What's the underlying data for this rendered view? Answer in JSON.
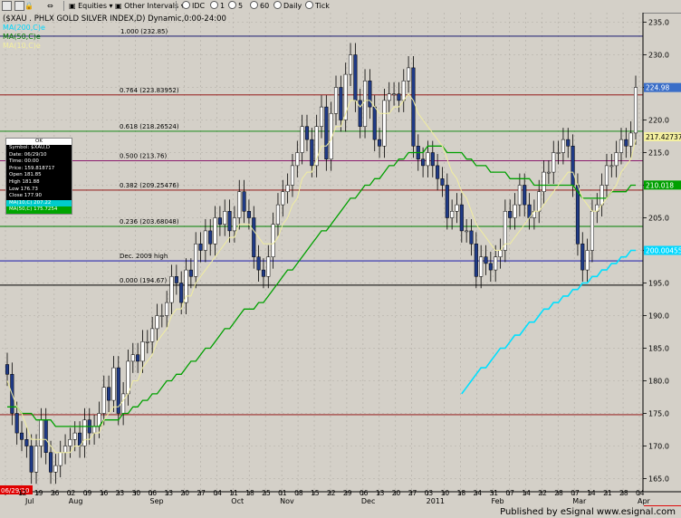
{
  "toolbar": {
    "items": [
      "Equities",
      "Other Intervals",
      "IDC",
      "1",
      "5",
      "60",
      "Daily",
      "Tick"
    ]
  },
  "footer": {
    "published": "Published by eSignal  www.esignal.com"
  },
  "databox": {
    "header": "OK",
    "rows": [
      "Symbol: $XAU,D",
      "Date: 06/29/10",
      "Time: 00:00",
      "Price: 159.818717",
      "Open 181.85",
      "High 181.88",
      "Low 176.73",
      "Close 177.90"
    ],
    "ma_rows": [
      "MA(10,C) 207.22",
      "MA(50,C) 175.7254"
    ]
  },
  "colors": {
    "background": "#d4d0c8",
    "candle_up": "#ffffff",
    "candle_down": "#1f3a86",
    "wick": "#000000",
    "ma10": "#f0eda0",
    "ma50": "#00a000",
    "ma200": "#00e0ff",
    "fib_line": "#8b0000",
    "fib_green": "#008000",
    "dec2009": "#0000aa",
    "top_line": "#000088"
  },
  "chart_data": {
    "type": "candlestick",
    "title": "($XAU . PHLX GOLD SILVER INDEX,D) Dynamic,0:00-24:00",
    "legend": [
      "MA(200,C)e",
      "MA(50,C)e",
      "MA(10,C)e"
    ],
    "ylim": [
      160,
      235
    ],
    "y_ticks": [
      165,
      170,
      175,
      180,
      185,
      190,
      195,
      200,
      205,
      210,
      215,
      220,
      225,
      230,
      235
    ],
    "x_tick_labels": [
      "06/29/10",
      "12",
      "19",
      "26",
      "02",
      "09",
      "16",
      "23",
      "30",
      "06",
      "13",
      "20",
      "27",
      "04",
      "11",
      "18",
      "25",
      "01",
      "08",
      "15",
      "22",
      "29",
      "06",
      "13",
      "20",
      "27",
      "03",
      "10",
      "18",
      "24",
      "31",
      "07",
      "14",
      "22",
      "28",
      "07",
      "14",
      "21",
      "28",
      "04"
    ],
    "month_labels": [
      "Jul",
      "Aug",
      "Sep",
      "Oct",
      "Nov",
      "Dec",
      "2011",
      "Feb",
      "Mar",
      "Apr"
    ],
    "price_badges": {
      "last": "224.98",
      "ma10": "217.42737",
      "ma50": "210.018",
      "ma200": "200.00455",
      "marker": "159.81871"
    },
    "horizontal_levels": [
      {
        "label": "1.000 (232.85)",
        "value": 232.85,
        "color": "#000066"
      },
      {
        "label": "0.764 (223.83952)",
        "value": 223.84,
        "color": "#8b0000"
      },
      {
        "label": "0.618 (218.26524)",
        "value": 218.27,
        "color": "#008000"
      },
      {
        "label": "0.500 (213.76)",
        "value": 213.76,
        "color": "#800060"
      },
      {
        "label": "0.382 (209.25476)",
        "value": 209.25,
        "color": "#8b0000"
      },
      {
        "label": "0.236 (203.68048)",
        "value": 203.68,
        "color": "#008000"
      },
      {
        "label": "Dec. 2009 high",
        "value": 198.4,
        "color": "#0000aa"
      },
      {
        "label": "0.000 (194.67)",
        "value": 194.67,
        "color": "#000000"
      },
      {
        "label": "",
        "value": 174.8,
        "color": "#8b0000"
      }
    ],
    "series": [
      {
        "name": "Close",
        "values": [
          181,
          175,
          172,
          171,
          170,
          166,
          170,
          174,
          169,
          166,
          167,
          169,
          170,
          171,
          172,
          170,
          174,
          172,
          173,
          175,
          179,
          177,
          182,
          175,
          178,
          183,
          184,
          183,
          186,
          186,
          188,
          190,
          190,
          192,
          196,
          195,
          192,
          197,
          196,
          201,
          200,
          203,
          201,
          205,
          204,
          206,
          203,
          205,
          209,
          206,
          205,
          199,
          197,
          196,
          199,
          204,
          207,
          209,
          210,
          213,
          215,
          219,
          217,
          213,
          219,
          222,
          214,
          221,
          225,
          220,
          227,
          230,
          223,
          219,
          226,
          222,
          217,
          216,
          223,
          224,
          224,
          223,
          226,
          228,
          216,
          214,
          213,
          215,
          213,
          211,
          210,
          205,
          206,
          207,
          203,
          203,
          201,
          196,
          199,
          198,
          197,
          199,
          200,
          206,
          205,
          207,
          210,
          207,
          205,
          206,
          209,
          212,
          212,
          215,
          215,
          217,
          216,
          210,
          201,
          197,
          200,
          206,
          207,
          210,
          213,
          213,
          215,
          217,
          216,
          218,
          225
        ]
      },
      {
        "name": "MA(10,C)e",
        "values": [
          180,
          178,
          176,
          175,
          173,
          171,
          171,
          171,
          171,
          170,
          169,
          169,
          169,
          169,
          170,
          170,
          171,
          171,
          172,
          172,
          174,
          175,
          176,
          176,
          177,
          178,
          180,
          180,
          182,
          183,
          184,
          186,
          187,
          188,
          190,
          191,
          191,
          193,
          193,
          195,
          196,
          197,
          198,
          199,
          200,
          201,
          202,
          202,
          204,
          204,
          204,
          203,
          202,
          201,
          201,
          201,
          202,
          204,
          205,
          207,
          208,
          211,
          212,
          212,
          214,
          216,
          216,
          217,
          219,
          219,
          221,
          223,
          223,
          222,
          223,
          223,
          222,
          221,
          221,
          221,
          222,
          222,
          223,
          224,
          223,
          221,
          220,
          219,
          218,
          217,
          216,
          214,
          212,
          211,
          209,
          208,
          206,
          204,
          203,
          202,
          201,
          200,
          200,
          201,
          201,
          202,
          203,
          204,
          205,
          206,
          206,
          207,
          208,
          209,
          210,
          211,
          212,
          212,
          210,
          208,
          207,
          206,
          206,
          207,
          208,
          209,
          210,
          212,
          213,
          214,
          217
        ]
      },
      {
        "name": "MA(50,C)e",
        "values": [
          176,
          176,
          176,
          175,
          175,
          175,
          174,
          174,
          174,
          174,
          173,
          173,
          173,
          173,
          173,
          173,
          173,
          173,
          173,
          173,
          174,
          174,
          174,
          174,
          175,
          175,
          176,
          176,
          177,
          177,
          178,
          178,
          179,
          180,
          180,
          181,
          181,
          182,
          183,
          183,
          184,
          185,
          185,
          186,
          187,
          188,
          188,
          189,
          190,
          191,
          191,
          191,
          192,
          192,
          193,
          194,
          195,
          196,
          197,
          197,
          198,
          199,
          200,
          201,
          202,
          203,
          203,
          204,
          205,
          206,
          207,
          208,
          208,
          209,
          210,
          210,
          211,
          211,
          212,
          213,
          213,
          214,
          214,
          215,
          215,
          215,
          215,
          216,
          216,
          216,
          216,
          215,
          215,
          215,
          215,
          214,
          214,
          213,
          213,
          213,
          212,
          212,
          212,
          212,
          211,
          211,
          211,
          211,
          211,
          210,
          210,
          210,
          210,
          210,
          210,
          210,
          210,
          210,
          209,
          208,
          208,
          208,
          208,
          208,
          208,
          209,
          209,
          209,
          209,
          210,
          210
        ]
      },
      {
        "name": "MA(200,C)e",
        "values": [
          178,
          179,
          180,
          181,
          182,
          182,
          183,
          184,
          185,
          185,
          186,
          187,
          187,
          188,
          189,
          189,
          190,
          191,
          191,
          192,
          192,
          193,
          193,
          194,
          194,
          195,
          195,
          196,
          196,
          197,
          197,
          198,
          198,
          199,
          199,
          200,
          200
        ]
      }
    ]
  }
}
